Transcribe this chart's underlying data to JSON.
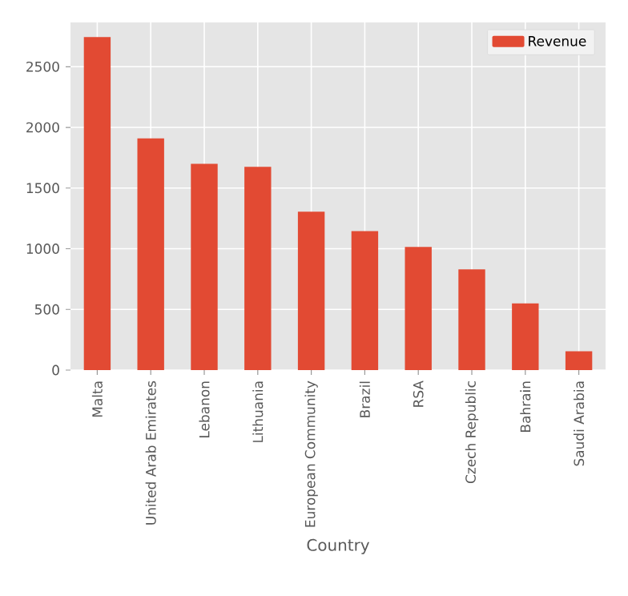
{
  "chart_data": {
    "type": "bar",
    "xlabel": "Country",
    "categories": [
      "Malta",
      "United Arab Emirates",
      "Lebanon",
      "Lithuania",
      "European Community",
      "Brazil",
      "RSA",
      "Czech Republic",
      "Bahrain",
      "Saudi Arabia"
    ],
    "series": [
      {
        "name": "Revenue",
        "color": "#e24a33",
        "values": [
          2745,
          1910,
          1700,
          1675,
          1305,
          1145,
          1015,
          830,
          550,
          155
        ]
      }
    ],
    "ylim": [
      0,
      2865
    ],
    "yticks": [
      0,
      500,
      1000,
      1500,
      2000,
      2500
    ],
    "grid": true,
    "legend": "top right"
  }
}
